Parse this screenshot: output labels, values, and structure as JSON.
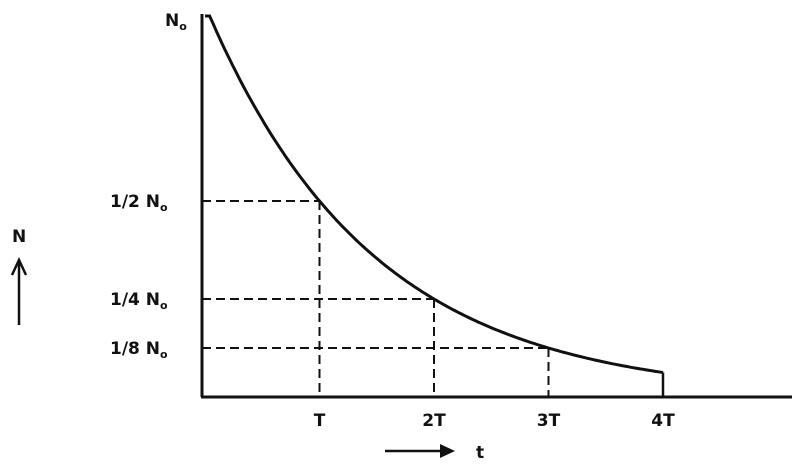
{
  "chart_data": {
    "type": "line",
    "xlabel": "t",
    "ylabel": "N",
    "x_ticks": [
      {
        "value": 1,
        "label": "T"
      },
      {
        "value": 2,
        "label": "2T"
      },
      {
        "value": 3,
        "label": "3T"
      },
      {
        "value": 4,
        "label": "4T"
      }
    ],
    "y_ticks": [
      {
        "value": 1,
        "label": "N",
        "sub": "o"
      },
      {
        "value": 0.5,
        "label": "1/2 N",
        "sub": "o"
      },
      {
        "value": 0.25,
        "label": "1/4 N",
        "sub": "o"
      },
      {
        "value": 0.125,
        "label": "1/8 N",
        "sub": "o"
      }
    ],
    "series": [
      {
        "x": [
          0,
          1,
          2,
          3,
          4
        ],
        "y": [
          1,
          0.5,
          0.25,
          0.125,
          0.0625
        ]
      }
    ],
    "xlim": [
      0,
      5.1
    ],
    "ylim": [
      0,
      1
    ],
    "grid": false,
    "dashed_guides": [
      1,
      2,
      3
    ],
    "color": "#111111"
  }
}
